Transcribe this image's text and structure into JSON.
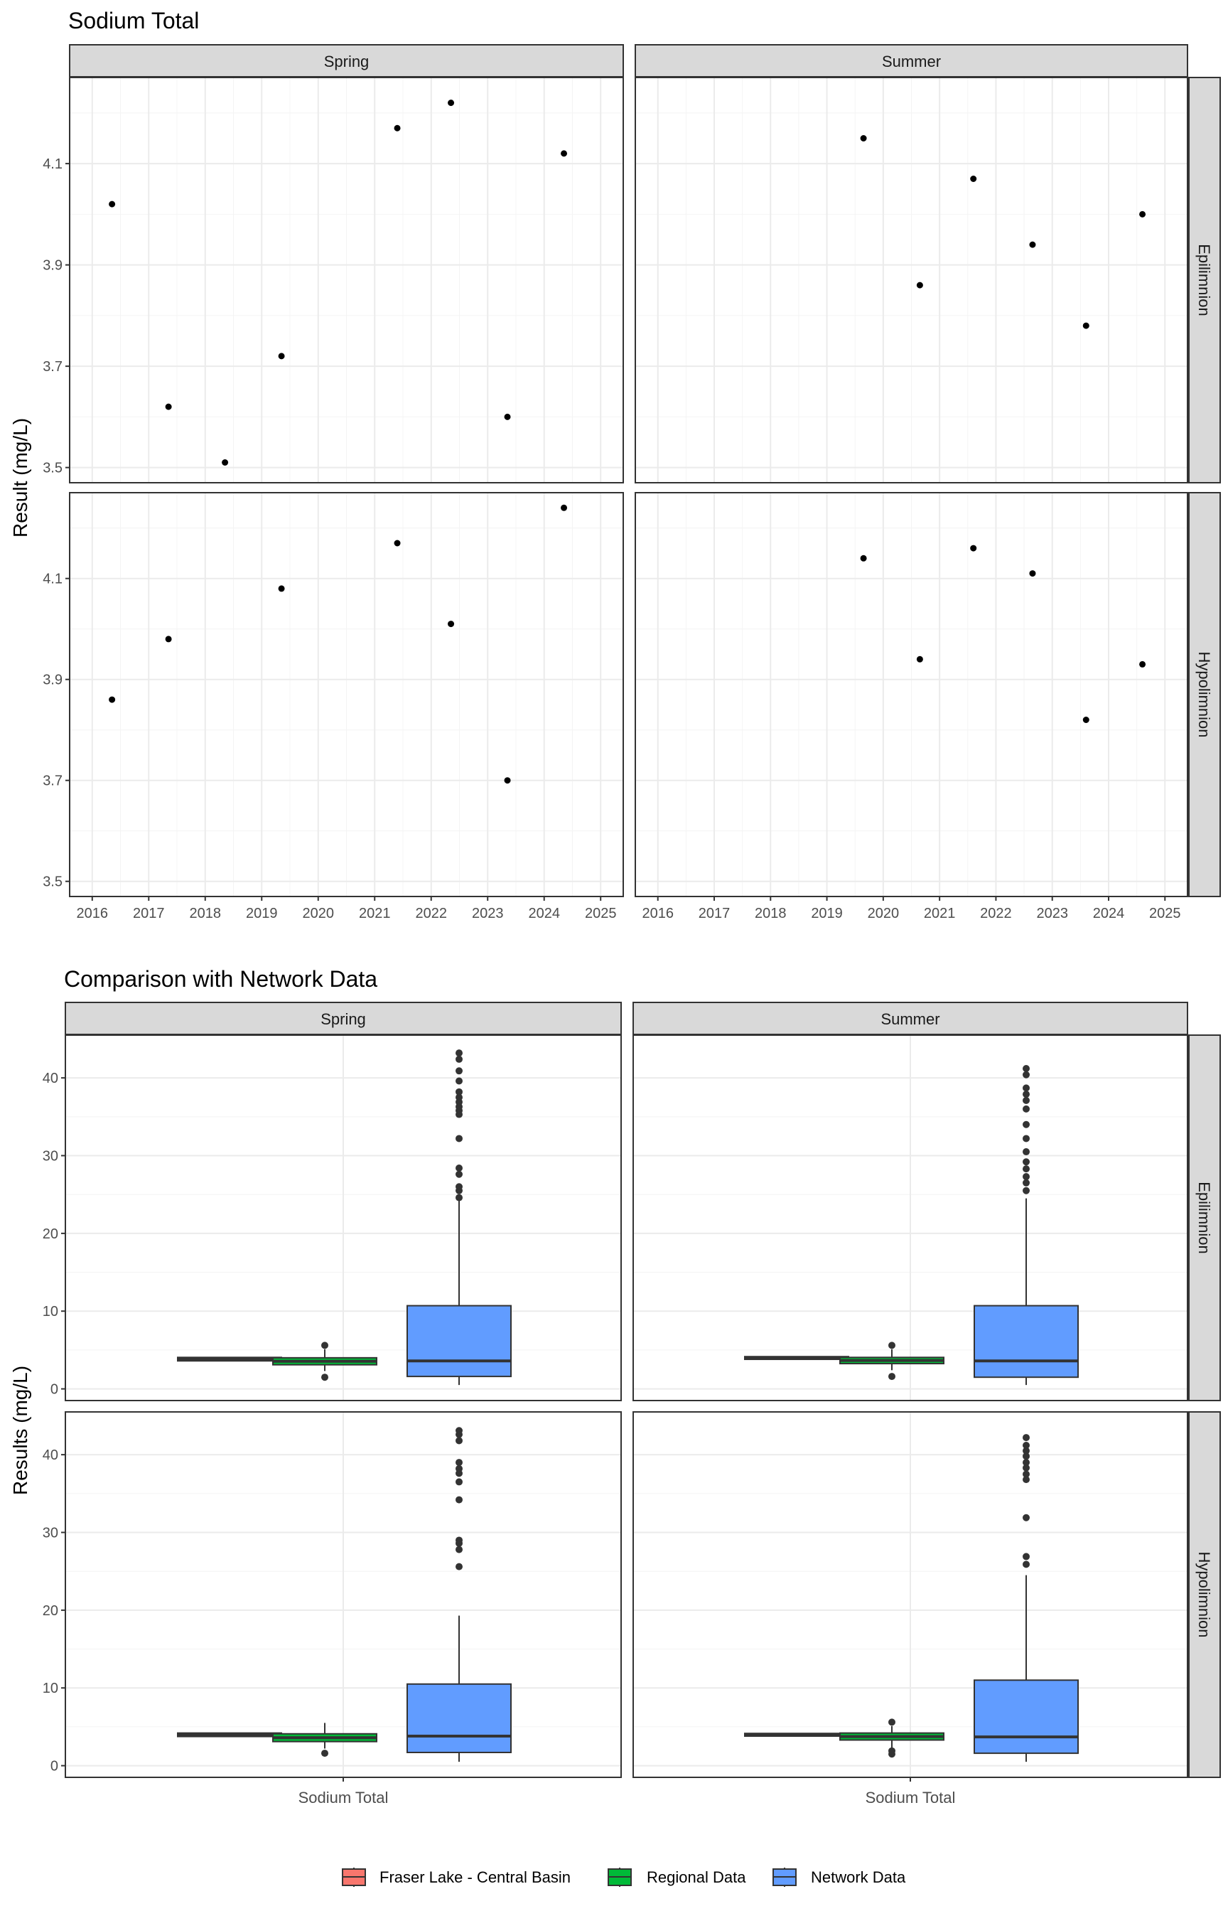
{
  "colors": {
    "panel_border": "#333333",
    "strip_fill": "#d9d9d9",
    "grid_major": "#ebebeb",
    "grid_minor": "#f4f4f4",
    "point": "#000000",
    "outlier": "#333333",
    "fraser_lake": "#f8766d",
    "regional": "#00ba38",
    "network": "#619cff"
  },
  "chart_data": [
    {
      "type": "scatter",
      "title": "Sodium Total",
      "ylabel": "Result (mg/L)",
      "xlabel": "",
      "x_ticks": [
        "2016",
        "2017",
        "2018",
        "2019",
        "2020",
        "2021",
        "2022",
        "2023",
        "2024",
        "2025"
      ],
      "xlim": [
        2015.6,
        2025.4
      ],
      "ylim": [
        3.47,
        4.27
      ],
      "y_ticks": [
        "3.5",
        "3.7",
        "3.9",
        "4.1"
      ],
      "grid": true,
      "col_facets": [
        "Spring",
        "Summer"
      ],
      "row_facets": [
        "Epilimnion",
        "Hypolimnion"
      ],
      "panels": [
        {
          "season": "Spring",
          "layer": "Epilimnion",
          "points": [
            [
              2016.35,
              4.02
            ],
            [
              2017.35,
              3.62
            ],
            [
              2018.35,
              3.51
            ],
            [
              2019.35,
              3.72
            ],
            [
              2021.4,
              4.17
            ],
            [
              2022.35,
              4.22
            ],
            [
              2023.35,
              3.6
            ],
            [
              2024.35,
              4.12
            ]
          ]
        },
        {
          "season": "Summer",
          "layer": "Epilimnion",
          "points": [
            [
              2019.65,
              4.15
            ],
            [
              2020.65,
              3.86
            ],
            [
              2021.6,
              4.07
            ],
            [
              2022.65,
              3.94
            ],
            [
              2023.6,
              3.78
            ],
            [
              2024.6,
              4.0
            ]
          ]
        },
        {
          "season": "Spring",
          "layer": "Hypolimnion",
          "points": [
            [
              2016.35,
              3.86
            ],
            [
              2017.35,
              3.98
            ],
            [
              2019.35,
              4.08
            ],
            [
              2021.4,
              4.17
            ],
            [
              2022.35,
              4.01
            ],
            [
              2023.35,
              3.7
            ],
            [
              2024.35,
              4.24
            ]
          ]
        },
        {
          "season": "Summer",
          "layer": "Hypolimnion",
          "points": [
            [
              2019.65,
              4.14
            ],
            [
              2020.65,
              3.94
            ],
            [
              2021.6,
              4.16
            ],
            [
              2022.65,
              4.11
            ],
            [
              2023.6,
              3.82
            ],
            [
              2024.6,
              3.93
            ]
          ]
        }
      ]
    },
    {
      "type": "box",
      "title": "Comparison with Network Data",
      "ylabel": "Results (mg/L)",
      "xlabel": "",
      "x_category": "Sodium Total",
      "ylim": [
        -1.5,
        45.5
      ],
      "y_ticks": [
        "0",
        "10",
        "20",
        "30",
        "40"
      ],
      "grid": true,
      "legend_position": "bottom",
      "legend": [
        "Fraser Lake - Central Basin",
        "Regional Data",
        "Network Data"
      ],
      "col_facets": [
        "Spring",
        "Summer"
      ],
      "row_facets": [
        "Epilimnion",
        "Hypolimnion"
      ],
      "panels": [
        {
          "season": "Spring",
          "layer": "Epilimnion",
          "boxes": [
            {
              "series": "Fraser Lake - Central Basin",
              "q1": 3.6,
              "median": 3.85,
              "q3": 4.05,
              "whisker_low": 3.6,
              "whisker_high": 4.05,
              "outliers": []
            },
            {
              "series": "Regional Data",
              "q1": 3.1,
              "median": 3.55,
              "q3": 4.0,
              "whisker_low": 2.3,
              "whisker_high": 5.1,
              "outliers": [
                1.5,
                5.6
              ]
            },
            {
              "series": "Network Data",
              "q1": 1.6,
              "median": 3.6,
              "q3": 10.7,
              "whisker_low": 0.5,
              "whisker_high": 24.2,
              "outliers": [
                24.6,
                25.5,
                26.0,
                27.6,
                28.4,
                32.2,
                35.3,
                35.8,
                36.3,
                36.9,
                37.5,
                38.2,
                39.6,
                40.9,
                42.4,
                43.2
              ]
            }
          ]
        },
        {
          "season": "Summer",
          "layer": "Epilimnion",
          "boxes": [
            {
              "series": "Fraser Lake - Central Basin",
              "q1": 3.8,
              "median": 3.95,
              "q3": 4.15,
              "whisker_low": 3.8,
              "whisker_high": 4.15,
              "outliers": []
            },
            {
              "series": "Regional Data",
              "q1": 3.25,
              "median": 3.65,
              "q3": 4.05,
              "whisker_low": 2.4,
              "whisker_high": 5.1,
              "outliers": [
                1.6,
                5.6
              ]
            },
            {
              "series": "Network Data",
              "q1": 1.5,
              "median": 3.6,
              "q3": 10.7,
              "whisker_low": 0.5,
              "whisker_high": 24.5,
              "outliers": [
                25.5,
                26.5,
                27.3,
                28.3,
                29.2,
                30.5,
                32.2,
                34.0,
                36.0,
                37.1,
                37.9,
                38.7,
                40.4,
                41.2
              ]
            }
          ]
        },
        {
          "season": "Spring",
          "layer": "Hypolimnion",
          "boxes": [
            {
              "series": "Fraser Lake - Central Basin",
              "q1": 3.75,
              "median": 3.95,
              "q3": 4.2,
              "whisker_low": 3.75,
              "whisker_high": 4.2,
              "outliers": []
            },
            {
              "series": "Regional Data",
              "q1": 3.1,
              "median": 3.6,
              "q3": 4.1,
              "whisker_low": 2.2,
              "whisker_high": 5.5,
              "outliers": [
                1.6
              ]
            },
            {
              "series": "Network Data",
              "q1": 1.7,
              "median": 3.8,
              "q3": 10.5,
              "whisker_low": 0.5,
              "whisker_high": 19.3,
              "outliers": [
                25.6,
                27.8,
                28.6,
                29.0,
                34.2,
                36.5,
                37.6,
                38.2,
                39.0,
                41.8,
                42.6,
                43.1
              ]
            }
          ]
        },
        {
          "season": "Summer",
          "layer": "Hypolimnion",
          "boxes": [
            {
              "series": "Fraser Lake - Central Basin",
              "q1": 3.8,
              "median": 3.95,
              "q3": 4.15,
              "whisker_low": 3.8,
              "whisker_high": 4.15,
              "outliers": []
            },
            {
              "series": "Regional Data",
              "q1": 3.3,
              "median": 3.75,
              "q3": 4.2,
              "whisker_low": 2.3,
              "whisker_high": 5.1,
              "outliers": [
                1.5,
                1.9,
                5.6
              ]
            },
            {
              "series": "Network Data",
              "q1": 1.6,
              "median": 3.7,
              "q3": 11.0,
              "whisker_low": 0.5,
              "whisker_high": 24.5,
              "outliers": [
                25.9,
                26.9,
                31.9,
                36.8,
                37.5,
                38.3,
                39.0,
                39.8,
                40.5,
                41.2,
                42.2
              ]
            }
          ]
        }
      ]
    }
  ]
}
